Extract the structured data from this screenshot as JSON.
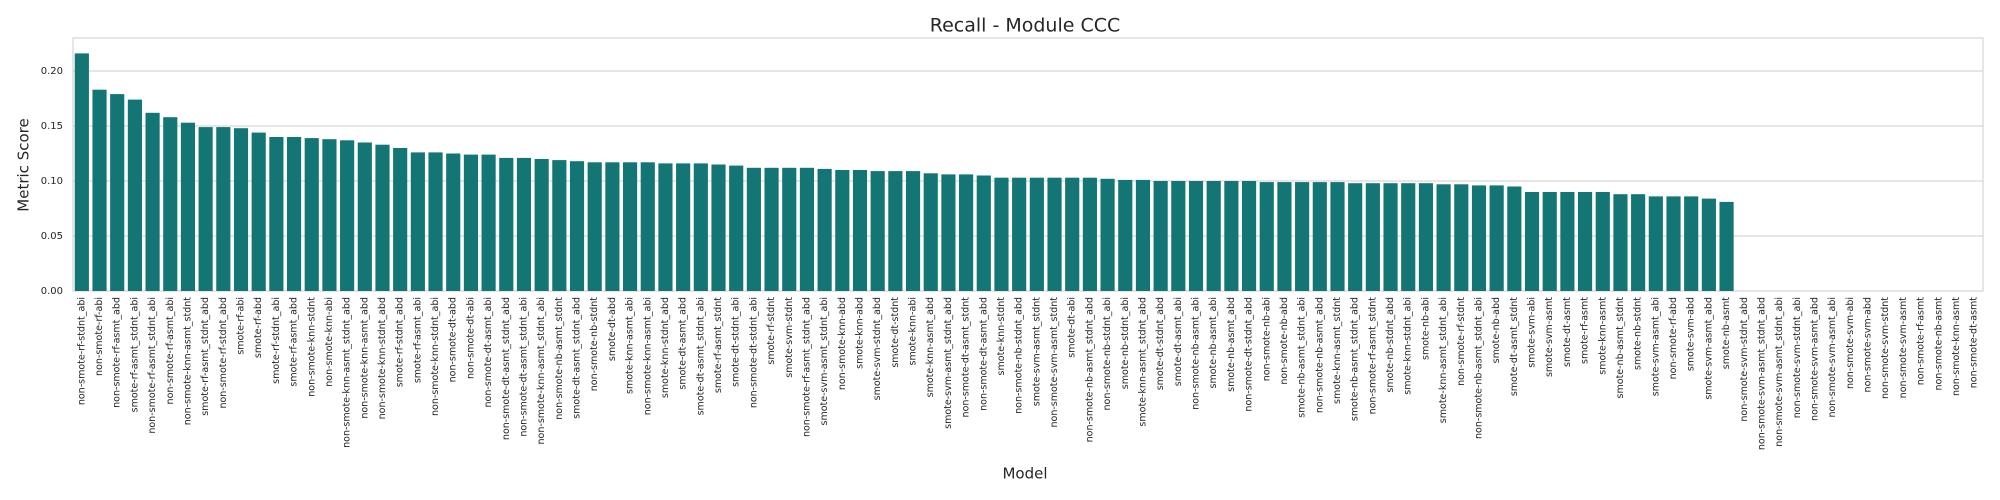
{
  "chart_data": {
    "type": "bar",
    "title": "Recall - Module CCC",
    "x_label": "Model",
    "y_label": "Metric Score",
    "color": "#137574",
    "grid": true,
    "ylim": [
      0,
      0.23
    ],
    "yticks": [
      {
        "value": 0,
        "label": "0.00"
      },
      {
        "value": 0.05,
        "label": "0.05"
      },
      {
        "value": 0.1,
        "label": "0.10"
      },
      {
        "value": 0.15,
        "label": "0.15"
      },
      {
        "value": 0.2,
        "label": "0.20"
      }
    ],
    "categories": [
      "non-smote-rf-stdnt_abi",
      "non-smote-rf-abi",
      "non-smote-rf-asmt_abd",
      "smote-rf-asmt_stdnt_abi",
      "non-smote-rf-asmt_stdnt_abi",
      "non-smote-rf-asmt_abi",
      "non-smote-knn-asmt_stdnt",
      "smote-rf-asmt_stdnt_abd",
      "non-smote-rf-stdnt_abd",
      "smote-rf-abi",
      "smote-rf-abd",
      "smote-rf-stdnt_abi",
      "smote-rf-asmt_abd",
      "non-smote-knn-stdnt",
      "non-smote-knn-abi",
      "non-smote-knn-asmt_stdnt_abd",
      "non-smote-knn-asmt_abd",
      "non-smote-knn-stdnt_abd",
      "smote-rf-stdnt_abd",
      "smote-rf-asmt_abi",
      "non-smote-knn-stdnt_abi",
      "non-smote-dt-abd",
      "non-smote-dt-abi",
      "non-smote-dt-asmt_abi",
      "non-smote-dt-asmt_stdnt_abd",
      "non-smote-dt-asmt_stdnt_abi",
      "non-smote-knn-asmt_stdnt_abi",
      "non-smote-nb-asmt_stdnt",
      "smote-dt-asmt_stdnt_abd",
      "non-smote-nb-stdnt",
      "smote-dt-abd",
      "smote-knn-asmt_abi",
      "non-smote-knn-asmt_abi",
      "smote-knn-stdnt_abd",
      "smote-dt-asmt_abd",
      "smote-dt-asmt_stdnt_abi",
      "smote-rf-asmt_stdnt",
      "smote-dt-stdnt_abi",
      "non-smote-dt-stdnt_abi",
      "smote-rf-stdnt",
      "smote-svm-stdnt",
      "non-smote-rf-asmt_stdnt_abd",
      "smote-svm-asmt_stdnt_abi",
      "non-smote-knn-abd",
      "smote-knn-abd",
      "smote-svm-stdnt_abd",
      "smote-dt-stdnt",
      "smote-knn-abi",
      "smote-knn-asmt_abd",
      "smote-svm-asmt_stdnt_abd",
      "non-smote-dt-asmt_stdnt",
      "non-smote-dt-asmt_abd",
      "smote-knn-stdnt",
      "non-smote-nb-stdnt_abd",
      "smote-svm-asmt_stdnt",
      "non-smote-svm-asmt_stdnt",
      "smote-dt-abi",
      "non-smote-nb-asmt_stdnt_abd",
      "non-smote-nb-stdnt_abi",
      "smote-nb-stdnt_abi",
      "smote-knn-asmt_stdnt_abd",
      "smote-dt-stdnt_abd",
      "smote-dt-asmt_abi",
      "non-smote-nb-asmt_abi",
      "smote-nb-asmt_abi",
      "smote-nb-asmt_abd",
      "non-smote-dt-stdnt_abd",
      "non-smote-nb-abi",
      "non-smote-nb-abd",
      "smote-nb-asmt_stdnt_abi",
      "non-smote-nb-asmt_abd",
      "smote-knn-asmt_stdnt",
      "smote-nb-asmt_stdnt_abd",
      "non-smote-rf-asmt_stdnt",
      "smote-nb-stdnt_abd",
      "smote-knn-stdnt_abi",
      "smote-nb-abi",
      "smote-knn-asmt_stdnt_abi",
      "non-smote-rf-stdnt",
      "non-smote-nb-asmt_stdnt_abi",
      "smote-nb-abd",
      "smote-dt-asmt_stdnt",
      "smote-svm-abi",
      "smote-svm-asmt",
      "smote-dt-asmt",
      "smote-rf-asmt",
      "smote-knn-asmt",
      "smote-nb-asmt_stdnt",
      "smote-nb-stdnt",
      "smote-svm-asmt_abi",
      "non-smote-rf-abd",
      "smote-svm-abd",
      "smote-svm-asmt_abd",
      "smote-nb-asmt",
      "non-smote-svm-stdnt_abd",
      "non-smote-svm-asmt_stdnt_abd",
      "non-smote-svm-asmt_stdnt_abi",
      "non-smote-svm-stdnt_abi",
      "non-smote-svm-asmt_abd",
      "non-smote-svm-asmt_abi",
      "non-smote-svm-abi",
      "non-smote-svm-abd",
      "non-smote-svm-stdnt",
      "non-smote-svm-asmt",
      "non-smote-rf-asmt",
      "non-smote-nb-asmt",
      "non-smote-knn-asmt",
      "non-smote-dt-asmt"
    ],
    "values": [
      0.216,
      0.183,
      0.179,
      0.174,
      0.162,
      0.158,
      0.153,
      0.149,
      0.149,
      0.148,
      0.144,
      0.14,
      0.14,
      0.139,
      0.138,
      0.137,
      0.135,
      0.133,
      0.13,
      0.126,
      0.126,
      0.125,
      0.124,
      0.124,
      0.121,
      0.121,
      0.12,
      0.119,
      0.118,
      0.117,
      0.117,
      0.117,
      0.117,
      0.116,
      0.116,
      0.116,
      0.115,
      0.114,
      0.112,
      0.112,
      0.112,
      0.112,
      0.111,
      0.11,
      0.11,
      0.109,
      0.109,
      0.109,
      0.107,
      0.106,
      0.106,
      0.105,
      0.103,
      0.103,
      0.103,
      0.103,
      0.103,
      0.103,
      0.102,
      0.101,
      0.101,
      0.1,
      0.1,
      0.1,
      0.1,
      0.1,
      0.1,
      0.099,
      0.099,
      0.099,
      0.099,
      0.099,
      0.098,
      0.098,
      0.098,
      0.098,
      0.098,
      0.097,
      0.097,
      0.096,
      0.096,
      0.095,
      0.09,
      0.09,
      0.09,
      0.09,
      0.09,
      0.088,
      0.088,
      0.086,
      0.086,
      0.086,
      0.084,
      0.081,
      0,
      0,
      0,
      0,
      0,
      0,
      0,
      0,
      0,
      0,
      0,
      0,
      0,
      0
    ]
  }
}
